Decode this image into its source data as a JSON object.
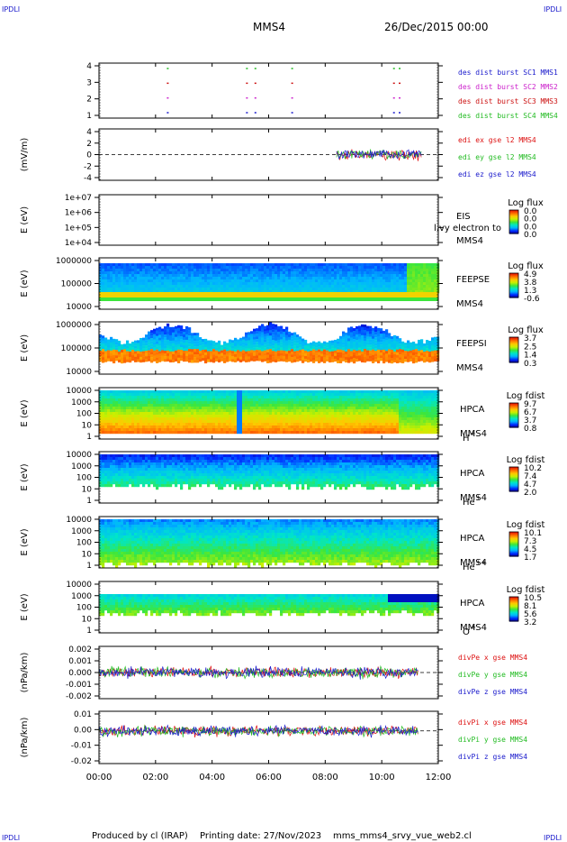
{
  "header": {
    "corner_tl": "IPDLI",
    "corner_tr": "IPDLI",
    "spacecraft": "MMS4",
    "datetime": "26/Dec/2015 00:00",
    "corner_bl": "IPDLI",
    "corner_br": "IPDLI"
  },
  "footer": {
    "produced": "Produced by cl (IRAP)",
    "printing": "Printing date: 27/Nov/2023",
    "config": "mms_mms4_srvy_vue_web2.cl"
  },
  "colors": {
    "mms1": "#1a1acc",
    "mms2": "#cc22cc",
    "mms3": "#cc1111",
    "mms4": "#22bb22",
    "ex": "#dd1111",
    "ey": "#22bb22",
    "ez": "#1a1acc"
  },
  "chart_data": {
    "type": "mixed",
    "x_ticks": [
      "00:00",
      "02:00",
      "04:00",
      "06:00",
      "08:00",
      "10:00",
      "12:00"
    ],
    "xlim_hours": [
      0,
      12
    ],
    "panels": [
      {
        "id": "burst",
        "type": "scatter",
        "yticks": [
          "4",
          "3",
          "2",
          "1"
        ],
        "ylim": [
          0.5,
          4.5
        ],
        "legend": [
          "des dist burst SC1 MMS1",
          "des dist burst SC2 MMS2",
          "des dist burst SC3 MMS3",
          "des dist burst SC4 MMS4"
        ],
        "series": [
          {
            "name": "MMS1",
            "y": 1,
            "x": [
              2.4,
              5.2,
              5.5,
              6.8,
              10.4,
              10.6
            ]
          },
          {
            "name": "MMS2",
            "y": 2,
            "x": [
              2.4,
              5.2,
              5.5,
              6.8,
              10.4,
              10.6
            ]
          },
          {
            "name": "MMS3",
            "y": 3,
            "x": [
              2.4,
              5.2,
              5.5,
              6.8,
              10.4,
              10.6
            ]
          },
          {
            "name": "MMS4",
            "y": 4,
            "x": [
              2.4,
              5.2,
              5.5,
              6.8,
              10.4,
              10.6
            ]
          }
        ]
      },
      {
        "id": "efield",
        "type": "line",
        "ylabel": "(mV/m)",
        "yticks": [
          "4",
          "2",
          "0",
          "-2",
          "-4"
        ],
        "ylim": [
          -4.5,
          4.5
        ],
        "legend": [
          "edi ex gse l2 MMS4",
          "edi ey gse l2 MMS4",
          "edi ez gse l2 MMS4"
        ],
        "data_start_hours": 8.4,
        "data_end_hours": 11.4
      },
      {
        "id": "eis",
        "type": "heatmap",
        "ylabel": "E (eV)",
        "yticks": [
          "1e+07",
          "1e+06",
          "1e+05",
          "1e+04"
        ],
        "label1": "EIS",
        "label2": "MMS4",
        "overlap_text": "l.vy electron to",
        "cbar_title": "Log flux",
        "cbar_ticks": [
          "0.0",
          "0.0",
          "0.0",
          "0.0"
        ]
      },
      {
        "id": "feepse",
        "type": "heatmap",
        "ylabel": "E (eV)",
        "yticks": [
          "1000000",
          "100000",
          "10000"
        ],
        "label1": "FEEPSE",
        "label2": "MMS4",
        "cbar_title": "Log flux",
        "cbar_ticks": [
          "4.9",
          "3.8",
          "1.3",
          "-0.6"
        ]
      },
      {
        "id": "feepsi",
        "type": "heatmap",
        "ylabel": "E (eV)",
        "yticks": [
          "1000000",
          "100000",
          "10000"
        ],
        "label1": "FEEPSI",
        "label2": "MMS4",
        "cbar_title": "Log flux",
        "cbar_ticks": [
          "3.7",
          "2.5",
          "1.4",
          "0.3"
        ]
      },
      {
        "id": "hpca_h",
        "type": "heatmap",
        "ylabel": "E (eV)",
        "yticks": [
          "10000",
          "1000",
          "100",
          "10",
          "1"
        ],
        "label1": "HPCA",
        "label2": "MMS4",
        "species": "H",
        "species_sup": "+",
        "cbar_title": "Log fdist",
        "cbar_ticks": [
          "9.7",
          "6.7",
          "3.7",
          "0.8"
        ]
      },
      {
        "id": "hpca_he",
        "type": "heatmap",
        "ylabel": "E (eV)",
        "yticks": [
          "10000",
          "1000",
          "100",
          "10",
          "1"
        ],
        "label1": "HPCA",
        "label2": "MMS4",
        "species": "He",
        "species_sup": "+",
        "cbar_title": "Log fdist",
        "cbar_ticks": [
          "10.2",
          "7.4",
          "4.7",
          "2.0"
        ]
      },
      {
        "id": "hpca_hepp",
        "type": "heatmap",
        "ylabel": "E (eV)",
        "yticks": [
          "10000",
          "1000",
          "100",
          "10",
          "1"
        ],
        "label1": "HPCA",
        "label2": "MMS4",
        "species": "He",
        "species_sup": "++",
        "cbar_title": "Log fdist",
        "cbar_ticks": [
          "10.1",
          "7.3",
          "4.5",
          "1.7"
        ]
      },
      {
        "id": "hpca_o",
        "type": "heatmap",
        "ylabel": "E (eV)",
        "yticks": [
          "10000",
          "1000",
          "100",
          "10",
          "1"
        ],
        "label1": "HPCA",
        "label2": "MMS4",
        "species": "O",
        "species_sup": "+",
        "cbar_title": "Log fdist",
        "cbar_ticks": [
          "10.5",
          "8.1",
          "5.6",
          "3.2"
        ]
      },
      {
        "id": "divpe",
        "type": "line",
        "ylabel": "(nPa/km)",
        "yticks": [
          "0.002",
          "0.001",
          "0.000",
          "-0.001",
          "-0.002"
        ],
        "ylim": [
          -0.0028,
          0.0028
        ],
        "legend": [
          "divPe x gse MMS4",
          "divPe y gse MMS4",
          "divPe z gse MMS4"
        ]
      },
      {
        "id": "divpi",
        "type": "line",
        "ylabel": "(nPa/km)",
        "yticks": [
          "0.01",
          "0.00",
          "-0.01",
          "-0.02"
        ],
        "ylim": [
          -0.025,
          0.015
        ],
        "legend": [
          "divPi x gse MMS4",
          "divPi y gse MMS4",
          "divPi z gse MMS4"
        ]
      }
    ]
  }
}
